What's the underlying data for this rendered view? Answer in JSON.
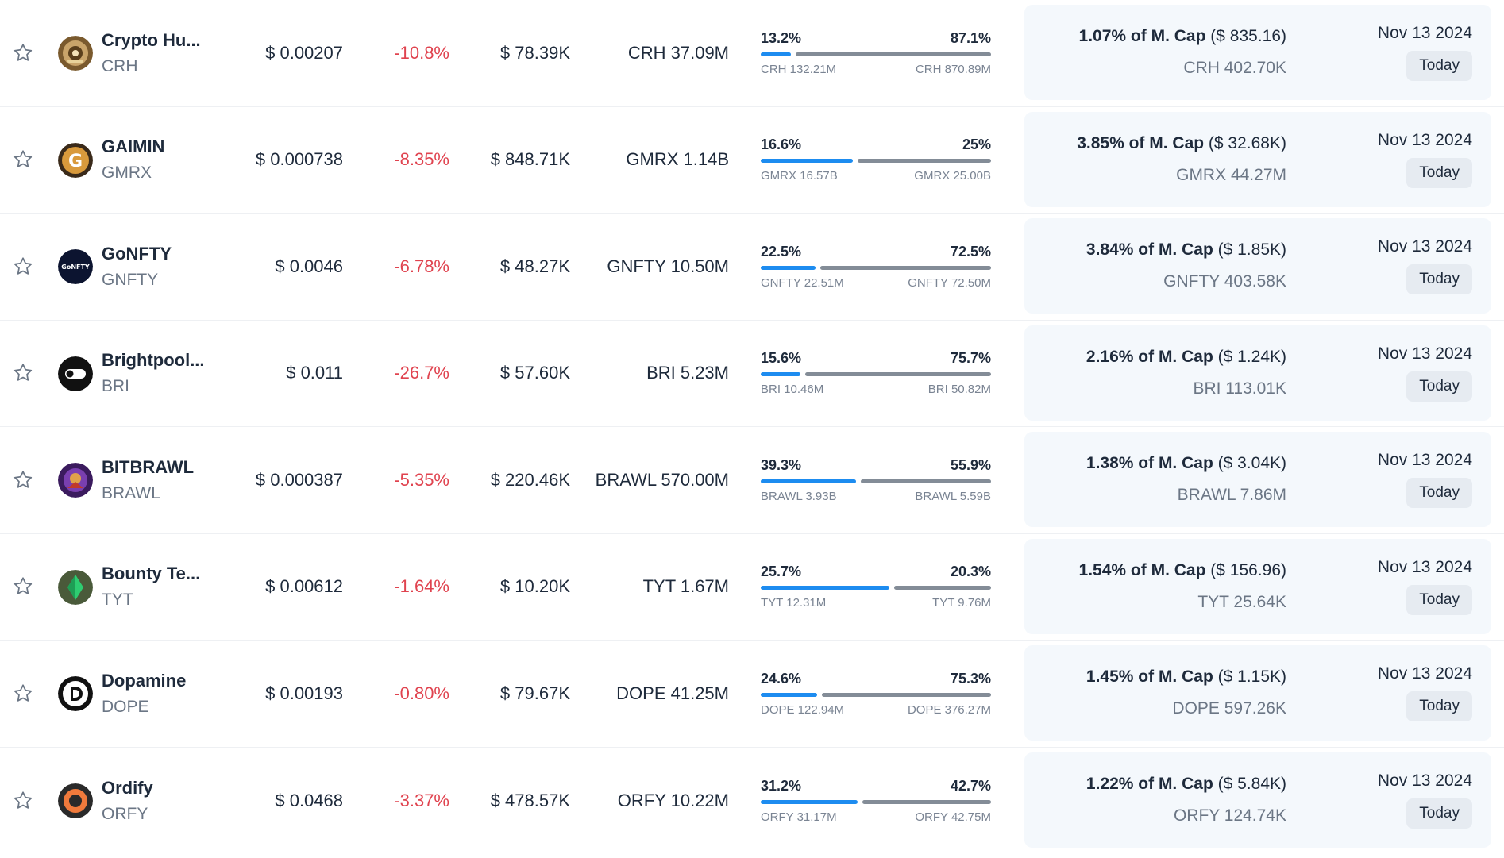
{
  "colors": {
    "negative": "#e0434f",
    "bar_unlocked": "#1d8cf0",
    "bar_locked": "#838c97",
    "card_bg": "#f4f8fc"
  },
  "rows": [
    {
      "name": "Crypto Hu...",
      "symbol": "CRH",
      "logo_icon": "crypto-hunters-logo-icon",
      "price": "$ 0.00207",
      "change": "-10.8%",
      "volume": "$ 78.39K",
      "supply": "CRH 37.09M",
      "unlocked_pct": "13.2%",
      "locked_pct": "87.1%",
      "unlocked_amt": "CRH 132.21M",
      "locked_amt": "CRH 870.89M",
      "unlocked_frac": 0.132,
      "next_pct": "1.07% of M. Cap",
      "next_usd": " ($ 835.16)",
      "next_amt": "CRH 402.70K",
      "date": "Nov 13 2024",
      "badge": "Today"
    },
    {
      "name": "GAIMIN",
      "symbol": "GMRX",
      "logo_icon": "gaimin-logo-icon",
      "price": "$ 0.000738",
      "change": "-8.35%",
      "volume": "$ 848.71K",
      "supply": "GMRX 1.14B",
      "unlocked_pct": "16.6%",
      "locked_pct": "25%",
      "unlocked_amt": "GMRX 16.57B",
      "locked_amt": "GMRX 25.00B",
      "unlocked_frac": 0.399,
      "next_pct": "3.85% of M. Cap",
      "next_usd": " ($ 32.68K)",
      "next_amt": "GMRX 44.27M",
      "date": "Nov 13 2024",
      "badge": "Today"
    },
    {
      "name": "GoNFTY",
      "symbol": "GNFTY",
      "logo_icon": "gonfty-logo-icon",
      "price": "$ 0.0046",
      "change": "-6.78%",
      "volume": "$ 48.27K",
      "supply": "GNFTY 10.50M",
      "unlocked_pct": "22.5%",
      "locked_pct": "72.5%",
      "unlocked_amt": "GNFTY 22.51M",
      "locked_amt": "GNFTY 72.50M",
      "unlocked_frac": 0.237,
      "next_pct": "3.84% of M. Cap",
      "next_usd": " ($ 1.85K)",
      "next_amt": "GNFTY 403.58K",
      "date": "Nov 13 2024",
      "badge": "Today"
    },
    {
      "name": "Brightpool...",
      "symbol": "BRI",
      "logo_icon": "brightpool-logo-icon",
      "price": "$ 0.011",
      "change": "-26.7%",
      "volume": "$ 57.60K",
      "supply": "BRI 5.23M",
      "unlocked_pct": "15.6%",
      "locked_pct": "75.7%",
      "unlocked_amt": "BRI 10.46M",
      "locked_amt": "BRI 50.82M",
      "unlocked_frac": 0.171,
      "next_pct": "2.16% of M. Cap",
      "next_usd": " ($ 1.24K)",
      "next_amt": "BRI 113.01K",
      "date": "Nov 13 2024",
      "badge": "Today"
    },
    {
      "name": "BITBRAWL",
      "symbol": "BRAWL",
      "logo_icon": "bitbrawl-logo-icon",
      "price": "$ 0.000387",
      "change": "-5.35%",
      "volume": "$ 220.46K",
      "supply": "BRAWL 570.00M",
      "unlocked_pct": "39.3%",
      "locked_pct": "55.9%",
      "unlocked_amt": "BRAWL 3.93B",
      "locked_amt": "BRAWL 5.59B",
      "unlocked_frac": 0.413,
      "next_pct": "1.38% of M. Cap",
      "next_usd": " ($ 3.04K)",
      "next_amt": "BRAWL 7.86M",
      "date": "Nov 13 2024",
      "badge": "Today"
    },
    {
      "name": "Bounty Te...",
      "symbol": "TYT",
      "logo_icon": "bounty-temple-logo-icon",
      "price": "$ 0.00612",
      "change": "-1.64%",
      "volume": "$ 10.20K",
      "supply": "TYT 1.67M",
      "unlocked_pct": "25.7%",
      "locked_pct": "20.3%",
      "unlocked_amt": "TYT 12.31M",
      "locked_amt": "TYT 9.76M",
      "unlocked_frac": 0.559,
      "next_pct": "1.54% of M. Cap",
      "next_usd": " ($ 156.96)",
      "next_amt": "TYT 25.64K",
      "date": "Nov 13 2024",
      "badge": "Today"
    },
    {
      "name": "Dopamine",
      "symbol": "DOPE",
      "logo_icon": "dopamine-logo-icon",
      "price": "$ 0.00193",
      "change": "-0.80%",
      "volume": "$ 79.67K",
      "supply": "DOPE 41.25M",
      "unlocked_pct": "24.6%",
      "locked_pct": "75.3%",
      "unlocked_amt": "DOPE 122.94M",
      "locked_amt": "DOPE 376.27M",
      "unlocked_frac": 0.246,
      "next_pct": "1.45% of M. Cap",
      "next_usd": " ($ 1.15K)",
      "next_amt": "DOPE 597.26K",
      "date": "Nov 13 2024",
      "badge": "Today"
    },
    {
      "name": "Ordify",
      "symbol": "ORFY",
      "logo_icon": "ordify-logo-icon",
      "price": "$ 0.0468",
      "change": "-3.37%",
      "volume": "$ 478.57K",
      "supply": "ORFY 10.22M",
      "unlocked_pct": "31.2%",
      "locked_pct": "42.7%",
      "unlocked_amt": "ORFY 31.17M",
      "locked_amt": "ORFY 42.75M",
      "unlocked_frac": 0.422,
      "next_pct": "1.22% of M. Cap",
      "next_usd": " ($ 5.84K)",
      "next_amt": "ORFY 124.74K",
      "date": "Nov 13 2024",
      "badge": "Today"
    }
  ]
}
